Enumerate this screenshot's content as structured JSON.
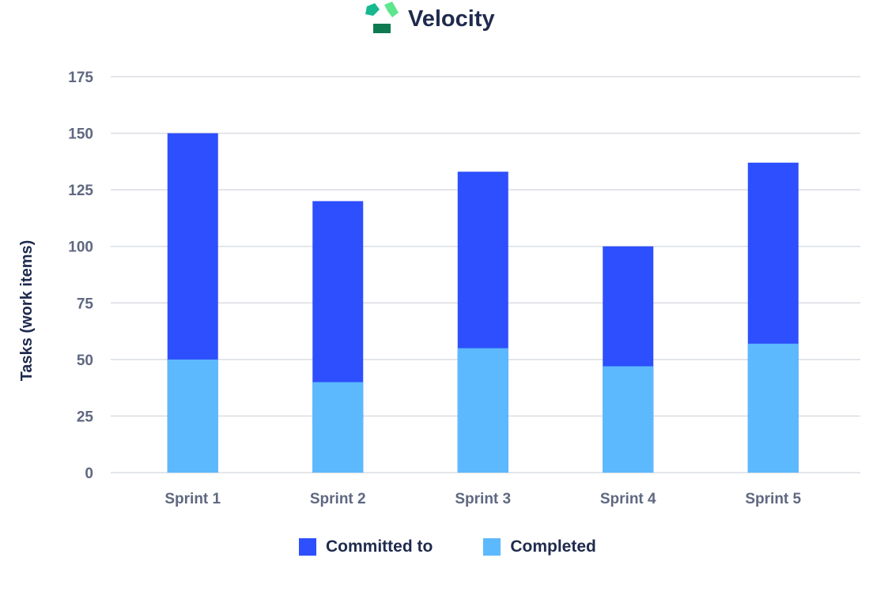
{
  "chart_data": {
    "type": "bar",
    "title": "Velocity",
    "xlabel": "",
    "ylabel": "Tasks (work items)",
    "ylim": [
      0,
      175
    ],
    "yticks": [
      0,
      25,
      50,
      75,
      100,
      125,
      150,
      175
    ],
    "grid": true,
    "legend_position": "bottom",
    "categories": [
      "Sprint 1",
      "Sprint 2",
      "Sprint 3",
      "Sprint 4",
      "Sprint 5"
    ],
    "series": [
      {
        "name": "Committed to",
        "color": "#2d4ffe",
        "values": [
          150,
          120,
          133,
          100,
          137
        ]
      },
      {
        "name": "Completed",
        "color": "#5cb9fe",
        "values": [
          50,
          40,
          55,
          47,
          57
        ]
      }
    ]
  }
}
